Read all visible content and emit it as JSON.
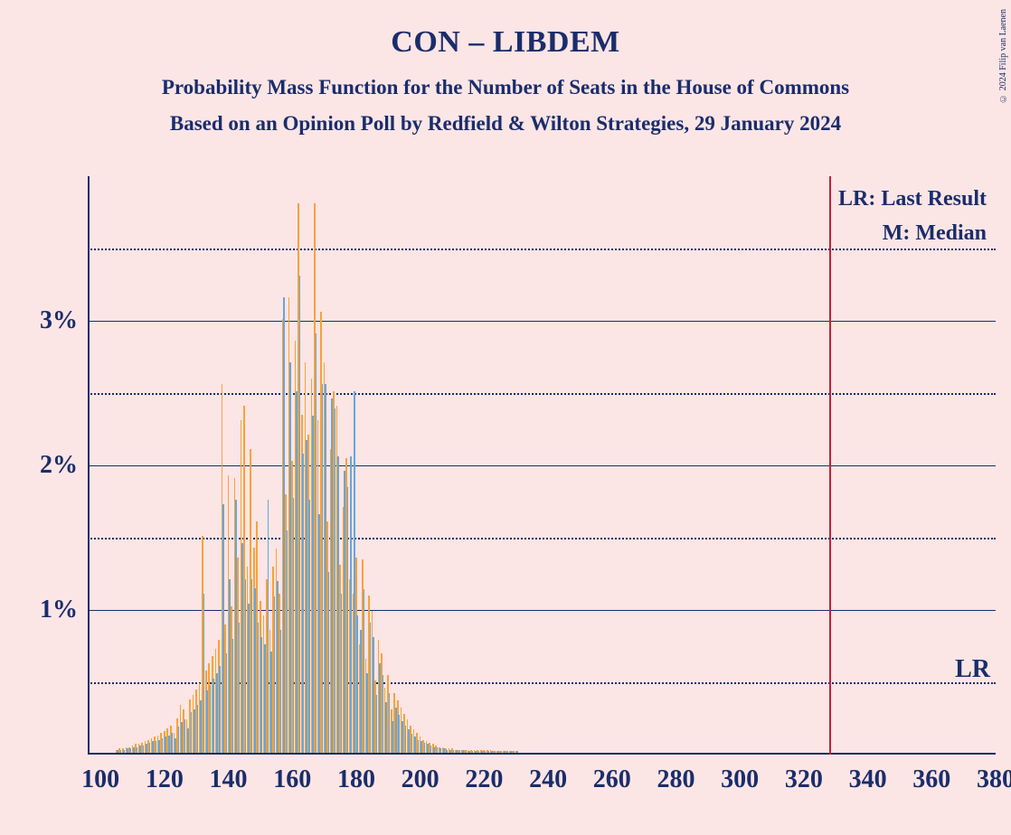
{
  "title": "CON – LIBDEM",
  "subtitle": "Probability Mass Function for the Number of Seats in the House of Commons",
  "subtitle2": "Based on an Opinion Poll by Redfield & Wilton Strategies, 29 January 2024",
  "copyright": "© 2024 Filip van Laenen",
  "legend": {
    "lr": "LR: Last Result",
    "m": "M: Median"
  },
  "lr_label": "LR",
  "chart": {
    "type": "bar",
    "background_color": "#fce5e5",
    "axis_color": "#1a2d6b",
    "text_color": "#1a2d6b",
    "lr_line_color": "#c41e3a",
    "bar_colors": {
      "orange": "#f8a23a",
      "blue": "#6aa5d8"
    },
    "x_min": 96,
    "x_max": 380,
    "x_ticks": [
      100,
      120,
      140,
      160,
      180,
      200,
      220,
      240,
      260,
      280,
      300,
      320,
      340,
      360,
      380
    ],
    "y_min": 0,
    "y_max": 4,
    "y_major": [
      1,
      2,
      3
    ],
    "y_minor": [
      0.5,
      1.5,
      2.5,
      3.5
    ],
    "y_labels": [
      "1%",
      "2%",
      "3%"
    ],
    "lr_x": 328,
    "series": [
      {
        "x": 105,
        "o": 0.02,
        "b": 0.02
      },
      {
        "x": 106,
        "o": 0.03,
        "b": 0.02
      },
      {
        "x": 107,
        "o": 0.03,
        "b": 0.02
      },
      {
        "x": 108,
        "o": 0.04,
        "b": 0.03
      },
      {
        "x": 109,
        "o": 0.04,
        "b": 0.03
      },
      {
        "x": 110,
        "o": 0.05,
        "b": 0.04
      },
      {
        "x": 111,
        "o": 0.06,
        "b": 0.04
      },
      {
        "x": 112,
        "o": 0.06,
        "b": 0.05
      },
      {
        "x": 113,
        "o": 0.07,
        "b": 0.05
      },
      {
        "x": 114,
        "o": 0.08,
        "b": 0.06
      },
      {
        "x": 115,
        "o": 0.09,
        "b": 0.07
      },
      {
        "x": 116,
        "o": 0.1,
        "b": 0.08
      },
      {
        "x": 117,
        "o": 0.11,
        "b": 0.08
      },
      {
        "x": 118,
        "o": 0.12,
        "b": 0.09
      },
      {
        "x": 119,
        "o": 0.14,
        "b": 0.1
      },
      {
        "x": 120,
        "o": 0.15,
        "b": 0.11
      },
      {
        "x": 121,
        "o": 0.17,
        "b": 0.12
      },
      {
        "x": 122,
        "o": 0.19,
        "b": 0.14
      },
      {
        "x": 123,
        "o": 0.14,
        "b": 0.1
      },
      {
        "x": 124,
        "o": 0.24,
        "b": 0.18
      },
      {
        "x": 125,
        "o": 0.33,
        "b": 0.21
      },
      {
        "x": 126,
        "o": 0.3,
        "b": 0.23
      },
      {
        "x": 127,
        "o": 0.23,
        "b": 0.17
      },
      {
        "x": 128,
        "o": 0.37,
        "b": 0.28
      },
      {
        "x": 129,
        "o": 0.4,
        "b": 0.3
      },
      {
        "x": 130,
        "o": 0.44,
        "b": 0.33
      },
      {
        "x": 131,
        "o": 0.48,
        "b": 0.36
      },
      {
        "x": 132,
        "o": 1.5,
        "b": 1.1
      },
      {
        "x": 133,
        "o": 0.57,
        "b": 0.43
      },
      {
        "x": 134,
        "o": 0.62,
        "b": 0.47
      },
      {
        "x": 135,
        "o": 0.67,
        "b": 0.51
      },
      {
        "x": 136,
        "o": 0.72,
        "b": 0.55
      },
      {
        "x": 137,
        "o": 0.78,
        "b": 0.6
      },
      {
        "x": 138,
        "o": 2.55,
        "b": 1.72
      },
      {
        "x": 139,
        "o": 0.89,
        "b": 0.69
      },
      {
        "x": 140,
        "o": 1.92,
        "b": 1.2
      },
      {
        "x": 141,
        "o": 1.01,
        "b": 0.79
      },
      {
        "x": 142,
        "o": 1.9,
        "b": 1.75
      },
      {
        "x": 143,
        "o": 1.35,
        "b": 0.9
      },
      {
        "x": 144,
        "o": 2.3,
        "b": 1.45
      },
      {
        "x": 145,
        "o": 2.4,
        "b": 1.2
      },
      {
        "x": 146,
        "o": 1.29,
        "b": 1.03
      },
      {
        "x": 147,
        "o": 2.1,
        "b": 1.2
      },
      {
        "x": 148,
        "o": 1.42,
        "b": 1.14
      },
      {
        "x": 149,
        "o": 1.6,
        "b": 0.9
      },
      {
        "x": 150,
        "o": 1.05,
        "b": 0.8
      },
      {
        "x": 151,
        "o": 0.95,
        "b": 0.75
      },
      {
        "x": 152,
        "o": 1.2,
        "b": 1.75
      },
      {
        "x": 153,
        "o": 0.85,
        "b": 0.7
      },
      {
        "x": 154,
        "o": 1.29,
        "b": 1.08
      },
      {
        "x": 155,
        "o": 1.41,
        "b": 1.19
      },
      {
        "x": 156,
        "o": 1.1,
        "b": 0.85
      },
      {
        "x": 157,
        "o": 3.0,
        "b": 3.15
      },
      {
        "x": 158,
        "o": 1.79,
        "b": 1.54
      },
      {
        "x": 159,
        "o": 3.15,
        "b": 2.7
      },
      {
        "x": 160,
        "o": 2.02,
        "b": 1.76
      },
      {
        "x": 161,
        "o": 2.85,
        "b": 2.5
      },
      {
        "x": 162,
        "o": 3.8,
        "b": 3.3
      },
      {
        "x": 163,
        "o": 2.34,
        "b": 2.07
      },
      {
        "x": 164,
        "o": 2.7,
        "b": 2.16
      },
      {
        "x": 165,
        "o": 2.2,
        "b": 1.75
      },
      {
        "x": 166,
        "o": 2.59,
        "b": 2.33
      },
      {
        "x": 167,
        "o": 3.8,
        "b": 2.9
      },
      {
        "x": 168,
        "o": 2.3,
        "b": 1.65
      },
      {
        "x": 169,
        "o": 3.05,
        "b": 2.55
      },
      {
        "x": 170,
        "o": 2.7,
        "b": 2.55
      },
      {
        "x": 171,
        "o": 1.6,
        "b": 1.25
      },
      {
        "x": 172,
        "o": 2.1,
        "b": 2.45
      },
      {
        "x": 173,
        "o": 2.5,
        "b": 2.38
      },
      {
        "x": 174,
        "o": 2.4,
        "b": 2.05
      },
      {
        "x": 175,
        "o": 1.3,
        "b": 1.1
      },
      {
        "x": 176,
        "o": 1.7,
        "b": 1.95
      },
      {
        "x": 177,
        "o": 2.04,
        "b": 1.84
      },
      {
        "x": 178,
        "o": 1.2,
        "b": 2.05
      },
      {
        "x": 179,
        "o": 1.1,
        "b": 2.5
      },
      {
        "x": 180,
        "o": 1.35,
        "b": 0.95
      },
      {
        "x": 181,
        "o": 0.75,
        "b": 0.85
      },
      {
        "x": 182,
        "o": 1.34,
        "b": 1.13
      },
      {
        "x": 183,
        "o": 0.65,
        "b": 0.55
      },
      {
        "x": 184,
        "o": 1.09,
        "b": 0.9
      },
      {
        "x": 185,
        "o": 0.98,
        "b": 0.8
      },
      {
        "x": 186,
        "o": 0.5,
        "b": 0.4
      },
      {
        "x": 187,
        "o": 0.78,
        "b": 0.62
      },
      {
        "x": 188,
        "o": 0.69,
        "b": 0.54
      },
      {
        "x": 189,
        "o": 0.45,
        "b": 0.35
      },
      {
        "x": 190,
        "o": 0.54,
        "b": 0.41
      },
      {
        "x": 191,
        "o": 0.3,
        "b": 0.22
      },
      {
        "x": 192,
        "o": 0.41,
        "b": 0.31
      },
      {
        "x": 193,
        "o": 0.36,
        "b": 0.26
      },
      {
        "x": 194,
        "o": 0.31,
        "b": 0.22
      },
      {
        "x": 195,
        "o": 0.27,
        "b": 0.19
      },
      {
        "x": 196,
        "o": 0.23,
        "b": 0.16
      },
      {
        "x": 197,
        "o": 0.19,
        "b": 0.13
      },
      {
        "x": 198,
        "o": 0.16,
        "b": 0.11
      },
      {
        "x": 199,
        "o": 0.14,
        "b": 0.09
      },
      {
        "x": 200,
        "o": 0.11,
        "b": 0.08
      },
      {
        "x": 201,
        "o": 0.09,
        "b": 0.07
      },
      {
        "x": 202,
        "o": 0.08,
        "b": 0.06
      },
      {
        "x": 203,
        "o": 0.07,
        "b": 0.05
      },
      {
        "x": 204,
        "o": 0.06,
        "b": 0.04
      },
      {
        "x": 205,
        "o": 0.05,
        "b": 0.04
      },
      {
        "x": 206,
        "o": 0.04,
        "b": 0.03
      },
      {
        "x": 207,
        "o": 0.04,
        "b": 0.03
      },
      {
        "x": 208,
        "o": 0.03,
        "b": 0.02
      },
      {
        "x": 209,
        "o": 0.03,
        "b": 0.02
      },
      {
        "x": 210,
        "o": 0.03,
        "b": 0.02
      },
      {
        "x": 211,
        "o": 0.02,
        "b": 0.02
      },
      {
        "x": 212,
        "o": 0.02,
        "b": 0.02
      },
      {
        "x": 213,
        "o": 0.02,
        "b": 0.02
      },
      {
        "x": 214,
        "o": 0.02,
        "b": 0.02
      },
      {
        "x": 215,
        "o": 0.02,
        "b": 0.01
      },
      {
        "x": 216,
        "o": 0.02,
        "b": 0.01
      },
      {
        "x": 217,
        "o": 0.02,
        "b": 0.01
      },
      {
        "x": 218,
        "o": 0.02,
        "b": 0.01
      },
      {
        "x": 219,
        "o": 0.02,
        "b": 0.01
      },
      {
        "x": 220,
        "o": 0.02,
        "b": 0.01
      },
      {
        "x": 221,
        "o": 0.02,
        "b": 0.01
      },
      {
        "x": 222,
        "o": 0.02,
        "b": 0.01
      },
      {
        "x": 223,
        "o": 0.01,
        "b": 0.01
      },
      {
        "x": 224,
        "o": 0.01,
        "b": 0.01
      },
      {
        "x": 225,
        "o": 0.01,
        "b": 0.01
      },
      {
        "x": 226,
        "o": 0.01,
        "b": 0.01
      },
      {
        "x": 227,
        "o": 0.01,
        "b": 0.01
      },
      {
        "x": 228,
        "o": 0.01,
        "b": 0.01
      },
      {
        "x": 229,
        "o": 0.01,
        "b": 0.01
      },
      {
        "x": 230,
        "o": 0.01,
        "b": 0.01
      }
    ]
  }
}
